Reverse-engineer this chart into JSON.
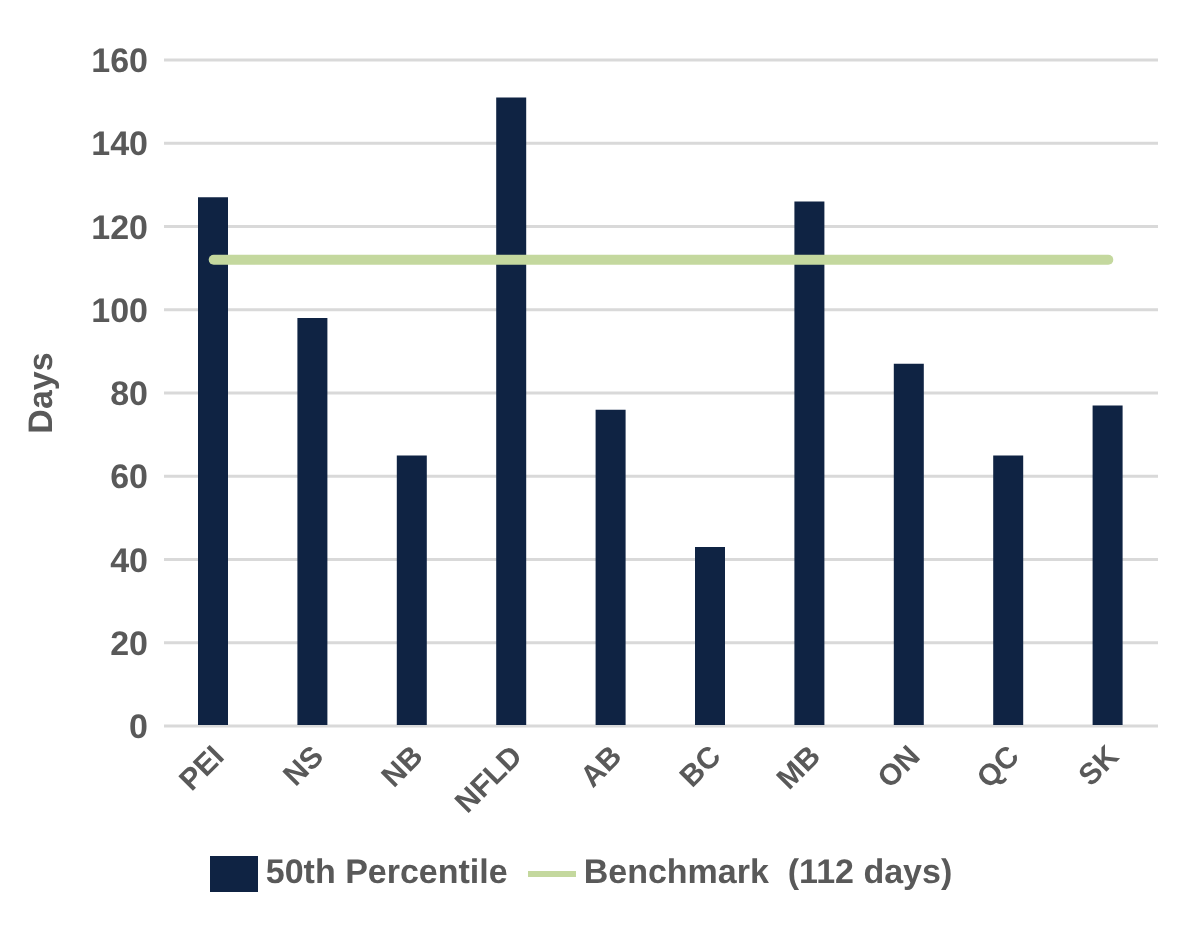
{
  "chart_data": {
    "type": "bar",
    "ylabel": "Days",
    "categories": [
      "PEI",
      "NS",
      "NB",
      "NFLD",
      "AB",
      "BC",
      "MB",
      "ON",
      "QC",
      "SK"
    ],
    "series": [
      {
        "name": "50th Percentile",
        "color": "#0f2343",
        "values": [
          127,
          98,
          65,
          151,
          76,
          43,
          126,
          87,
          65,
          77
        ]
      },
      {
        "name": "Benchmark  (112 days)",
        "type": "line",
        "color": "#c4d89e",
        "values": [
          112,
          112,
          112,
          112,
          112,
          112,
          112,
          112,
          112,
          112
        ]
      }
    ],
    "ylim": [
      0,
      160
    ],
    "yticks": [
      0,
      20,
      40,
      60,
      80,
      100,
      120,
      140,
      160
    ],
    "grid": "y",
    "legend": "bottom",
    "marker": "none"
  }
}
